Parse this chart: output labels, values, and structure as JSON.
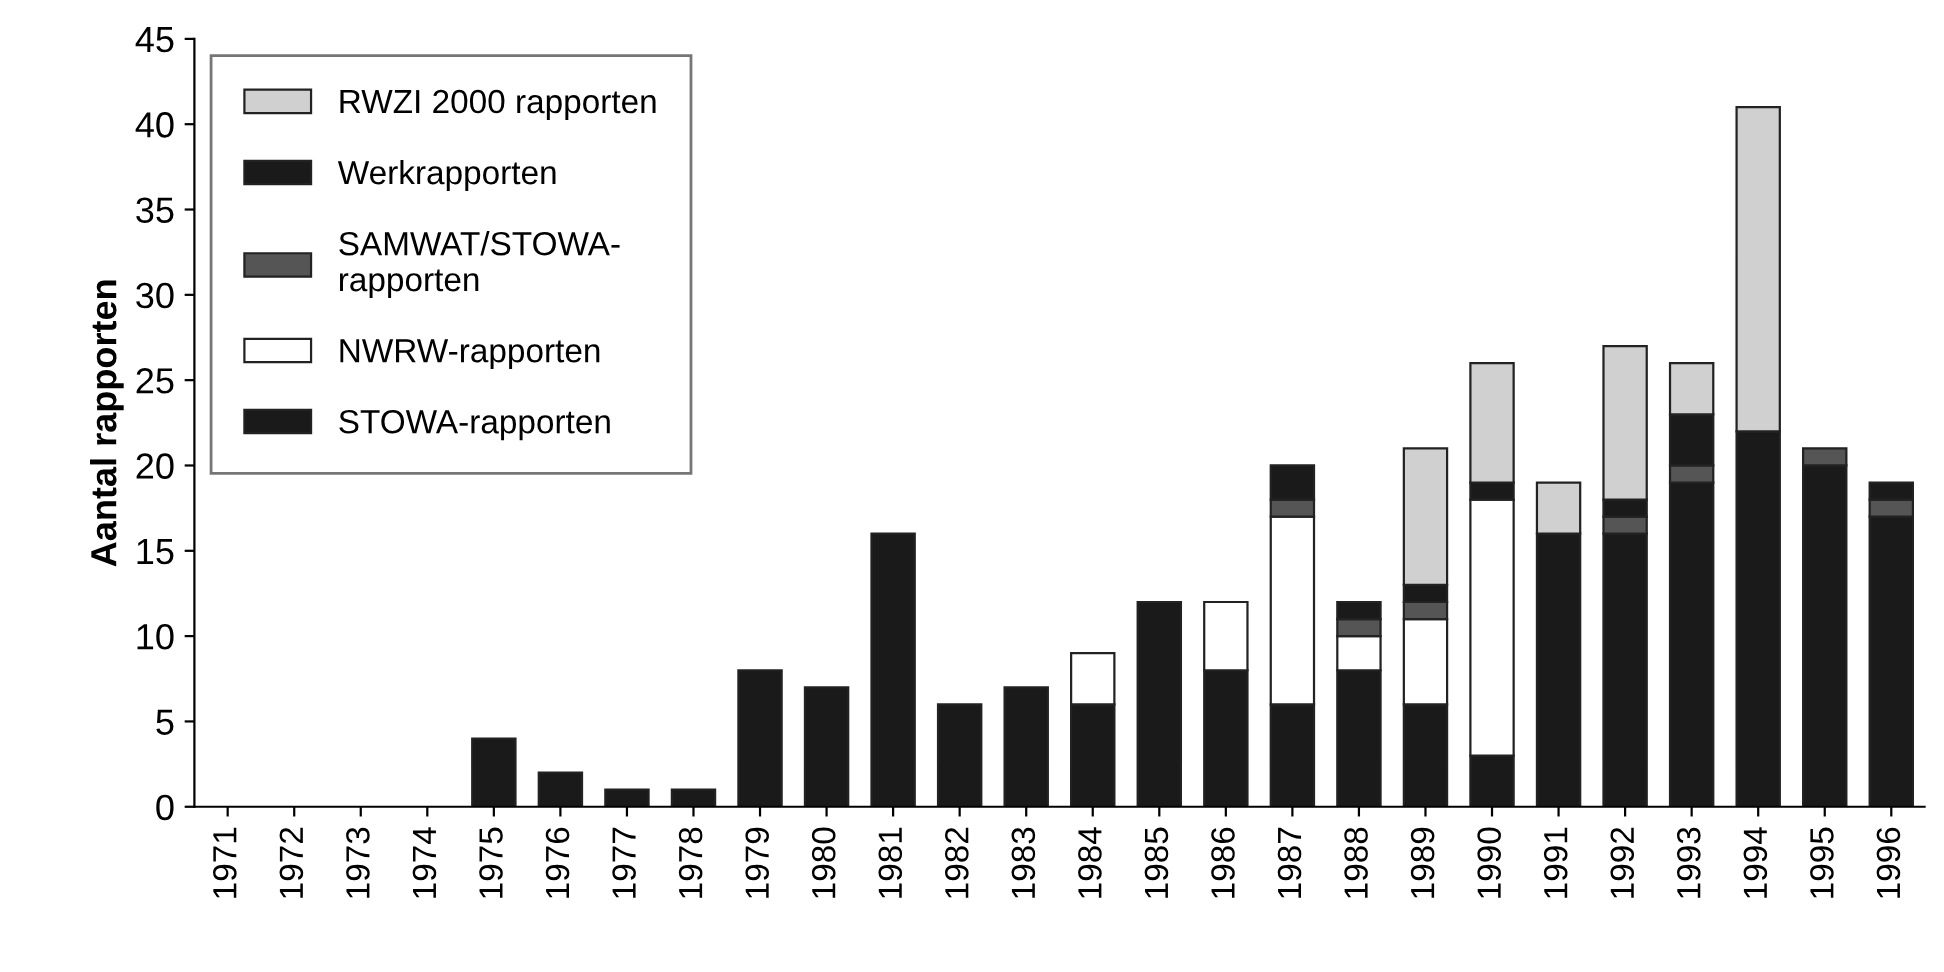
{
  "chart_data": {
    "type": "bar",
    "stacked": true,
    "ylabel": "Aantal rapporten",
    "categories": [
      "1971",
      "1972",
      "1973",
      "1974",
      "1975",
      "1976",
      "1977",
      "1978",
      "1979",
      "1980",
      "1981",
      "1982",
      "1983",
      "1984",
      "1985",
      "1986",
      "1987",
      "1988",
      "1989",
      "1990",
      "1991",
      "1992",
      "1993",
      "1994",
      "1995",
      "1996"
    ],
    "series": [
      {
        "name": "STOWA-rapporten",
        "color": "#1a1a1a",
        "values": [
          0,
          0,
          0,
          0,
          4,
          2,
          1,
          1,
          8,
          7,
          16,
          6,
          7,
          6,
          12,
          8,
          6,
          8,
          6,
          3,
          16,
          16,
          19,
          22,
          20,
          17
        ]
      },
      {
        "name": "NWRW-rapporten",
        "color": "#ffffff",
        "values": [
          0,
          0,
          0,
          0,
          0,
          0,
          0,
          0,
          0,
          0,
          0,
          0,
          0,
          3,
          0,
          4,
          11,
          2,
          5,
          15,
          0,
          0,
          0,
          0,
          0,
          0
        ]
      },
      {
        "name": "SAMWAT/STOWA-\nrapporten",
        "color": "#555555",
        "values": [
          0,
          0,
          0,
          0,
          0,
          0,
          0,
          0,
          0,
          0,
          0,
          0,
          0,
          0,
          0,
          0,
          1,
          1,
          1,
          0,
          0,
          1,
          1,
          0,
          1,
          1
        ]
      },
      {
        "name": "Werkrapporten",
        "color": "#1a1a1a",
        "values": [
          0,
          0,
          0,
          0,
          0,
          0,
          0,
          0,
          0,
          0,
          0,
          0,
          0,
          0,
          0,
          0,
          2,
          1,
          1,
          1,
          0,
          1,
          3,
          0,
          0,
          1
        ]
      },
      {
        "name": "RWZI 2000 rapporten",
        "color": "#d0d0d0",
        "values": [
          0,
          0,
          0,
          0,
          0,
          0,
          0,
          0,
          0,
          0,
          0,
          0,
          0,
          0,
          0,
          0,
          0,
          0,
          8,
          7,
          3,
          9,
          3,
          19,
          0,
          0
        ]
      }
    ],
    "ylim": [
      0,
      45
    ],
    "yticks": [
      0,
      5,
      10,
      15,
      20,
      25,
      30,
      35,
      40,
      45
    ],
    "grid": false,
    "legend": "top left"
  }
}
